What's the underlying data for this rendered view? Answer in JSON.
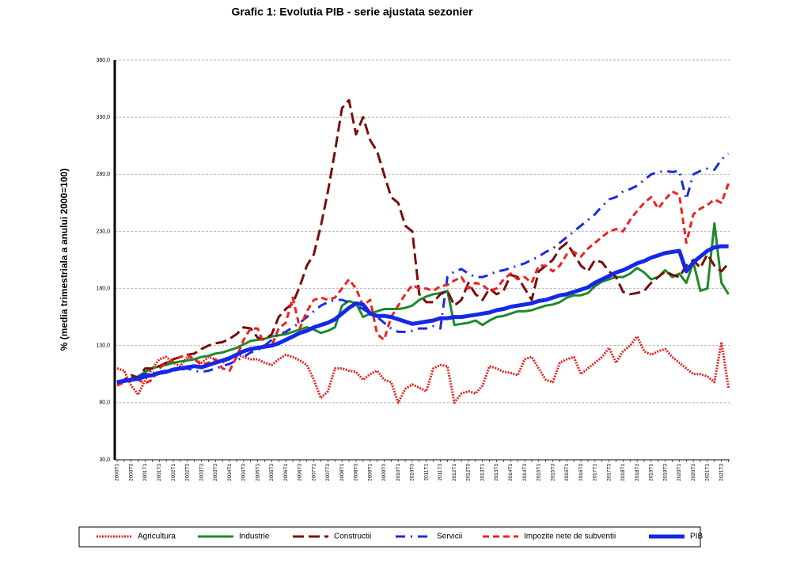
{
  "chart_data": {
    "type": "line",
    "title": "Grafic 1: Evolutia PIB - serie ajustata sezonier",
    "y_label": "% (media trimestriala a anului 2000=100)",
    "categories": [
      "2000T1",
      null,
      "2000T3",
      null,
      "2001T1",
      null,
      "2001T3",
      null,
      "2002T1",
      null,
      "2002T3",
      null,
      "2003T1",
      null,
      "2003T3",
      null,
      "2004T1",
      null,
      "2004T3",
      null,
      "2005T1",
      null,
      "2005T3",
      null,
      "2006T1",
      null,
      "2006T3",
      null,
      "2007T1",
      null,
      "2007T3",
      null,
      "2008T1",
      null,
      "2008T3",
      null,
      "2009T1",
      null,
      "2009T3",
      null,
      "2010T1",
      null,
      "2010T3",
      null,
      "2011T1",
      null,
      "2011T3",
      null,
      "2012T1",
      null,
      "2012T3",
      null,
      "2013T1",
      null,
      "2013T3",
      null,
      "2014T1",
      null,
      "2014T3",
      null,
      "2015T1",
      null,
      "2015T3",
      null,
      "2016T1",
      null,
      "2016T3",
      null,
      "2017T1",
      null,
      "2017T3",
      null,
      "2018T1",
      null,
      "2018T3",
      null,
      "2019T1",
      null,
      "2019T3",
      null,
      "2020T1",
      null,
      "2020T3",
      null,
      "2021T1",
      null,
      "2021T3",
      null
    ],
    "ylim": [
      30,
      380
    ],
    "yticks": [
      {
        "value": 30,
        "label": "30,0"
      },
      {
        "value": 80,
        "label": "80,0"
      },
      {
        "value": 130,
        "label": "130,0"
      },
      {
        "value": 180,
        "label": "180,0"
      },
      {
        "value": 230,
        "label": "230,0"
      },
      {
        "value": 280,
        "label": "280,0"
      },
      {
        "value": 330,
        "label": "330,0"
      },
      {
        "value": 380,
        "label": "380,0"
      }
    ],
    "grid": true,
    "legend": "bottom",
    "series": [
      {
        "name": "Agricultura",
        "color": "#e8231f",
        "values": [
          110,
          108,
          95,
          87,
          100,
          110,
          118,
          120,
          115,
          112,
          120,
          118,
          115,
          120,
          118,
          115,
          118,
          122,
          120,
          118,
          118,
          115,
          113,
          118,
          122,
          120,
          117,
          113,
          100,
          84,
          90,
          110,
          110,
          108,
          107,
          100,
          105,
          108,
          100,
          98,
          80,
          92,
          96,
          93,
          90,
          110,
          113,
          112,
          80,
          88,
          90,
          88,
          95,
          112,
          110,
          107,
          106,
          104,
          118,
          120,
          110,
          100,
          98,
          115,
          118,
          120,
          105,
          110,
          115,
          120,
          128,
          115,
          125,
          130,
          138,
          125,
          122,
          125,
          127,
          120,
          115,
          110,
          105,
          105,
          103,
          98,
          133,
          93
        ]
      },
      {
        "name": "Industrie",
        "color": "#1e8a2a",
        "values": [
          97,
          99,
          101,
          103,
          107,
          110,
          112,
          113,
          115,
          116,
          117,
          118,
          120,
          121,
          123,
          124,
          126,
          128,
          131,
          134,
          135,
          136,
          138,
          139,
          140,
          142,
          144,
          146,
          144,
          141,
          143,
          146,
          165,
          169,
          167,
          155,
          158,
          160,
          162,
          162,
          162,
          163,
          165,
          170,
          173,
          175,
          176,
          178,
          148,
          149,
          150,
          152,
          148,
          152,
          155,
          156,
          158,
          160,
          160,
          161,
          163,
          165,
          166,
          168,
          172,
          174,
          174,
          176,
          182,
          186,
          188,
          190,
          190,
          193,
          198,
          194,
          188,
          190,
          196,
          190,
          193,
          185,
          203,
          178,
          180,
          237,
          185,
          175
        ]
      },
      {
        "name": "Constructii",
        "color": "#7b0c0c",
        "values": [
          97,
          100,
          104,
          102,
          110,
          110,
          112,
          115,
          118,
          120,
          122,
          123,
          127,
          130,
          132,
          133,
          136,
          140,
          146,
          145,
          137,
          135,
          140,
          155,
          162,
          167,
          182,
          200,
          210,
          235,
          265,
          300,
          338,
          345,
          315,
          330,
          310,
          300,
          280,
          260,
          255,
          235,
          230,
          175,
          168,
          168,
          175,
          178,
          165,
          170,
          185,
          175,
          170,
          180,
          175,
          178,
          192,
          190,
          180,
          170,
          195,
          200,
          205,
          215,
          220,
          210,
          200,
          195,
          205,
          203,
          195,
          190,
          177,
          175,
          176,
          178,
          185,
          190,
          195,
          192,
          190,
          200,
          205,
          198,
          210,
          200,
          195,
          202
        ]
      },
      {
        "name": "Servicii",
        "color": "#1c2be0",
        "values": [
          98,
          100,
          102,
          103,
          105,
          106,
          107,
          108,
          108,
          109,
          110,
          108,
          107,
          108,
          110,
          112,
          114,
          117,
          120,
          124,
          126,
          130,
          135,
          140,
          142,
          146,
          150,
          155,
          160,
          165,
          168,
          170,
          170,
          168,
          165,
          162,
          158,
          155,
          150,
          145,
          142,
          142,
          143,
          145,
          145,
          147,
          145,
          190,
          195,
          197,
          193,
          190,
          190,
          192,
          195,
          196,
          198,
          200,
          202,
          205,
          208,
          212,
          215,
          220,
          225,
          230,
          235,
          240,
          245,
          252,
          258,
          260,
          265,
          267,
          270,
          275,
          280,
          282,
          283,
          282,
          283,
          258,
          280,
          283,
          285,
          284,
          293,
          298
        ]
      },
      {
        "name": "Impozite nete de subventii",
        "color": "#f02020",
        "values": [
          95,
          98,
          100,
          100,
          97,
          100,
          110,
          115,
          117,
          120,
          122,
          118,
          113,
          115,
          118,
          110,
          108,
          120,
          135,
          145,
          145,
          130,
          130,
          145,
          150,
          172,
          145,
          160,
          170,
          172,
          170,
          172,
          180,
          188,
          180,
          165,
          170,
          140,
          135,
          155,
          165,
          175,
          183,
          180,
          180,
          178,
          182,
          183,
          187,
          190,
          180,
          185,
          183,
          178,
          180,
          188,
          193,
          188,
          190,
          185,
          200,
          200,
          195,
          200,
          210,
          212,
          208,
          215,
          220,
          225,
          230,
          232,
          230,
          240,
          248,
          255,
          260,
          250,
          258,
          265,
          262,
          220,
          245,
          250,
          253,
          258,
          255,
          272
        ]
      },
      {
        "name": "PIB",
        "color": "#1428e6",
        "values": [
          98,
          99,
          100,
          101,
          103,
          104,
          106,
          107,
          109,
          110,
          111,
          112,
          111,
          113,
          115,
          117,
          119,
          122,
          125,
          127,
          128,
          129,
          130,
          132,
          135,
          138,
          141,
          143,
          146,
          148,
          150,
          153,
          158,
          163,
          167,
          166,
          158,
          156,
          156,
          155,
          153,
          151,
          149,
          150,
          151,
          152,
          154,
          154,
          155,
          155,
          156,
          157,
          158,
          159,
          161,
          162,
          164,
          165,
          166,
          167,
          169,
          170,
          172,
          174,
          175,
          177,
          179,
          181,
          185,
          188,
          191,
          194,
          196,
          199,
          202,
          204,
          207,
          209,
          211,
          212,
          213,
          195,
          203,
          208,
          213,
          216,
          217,
          217
        ]
      }
    ]
  }
}
